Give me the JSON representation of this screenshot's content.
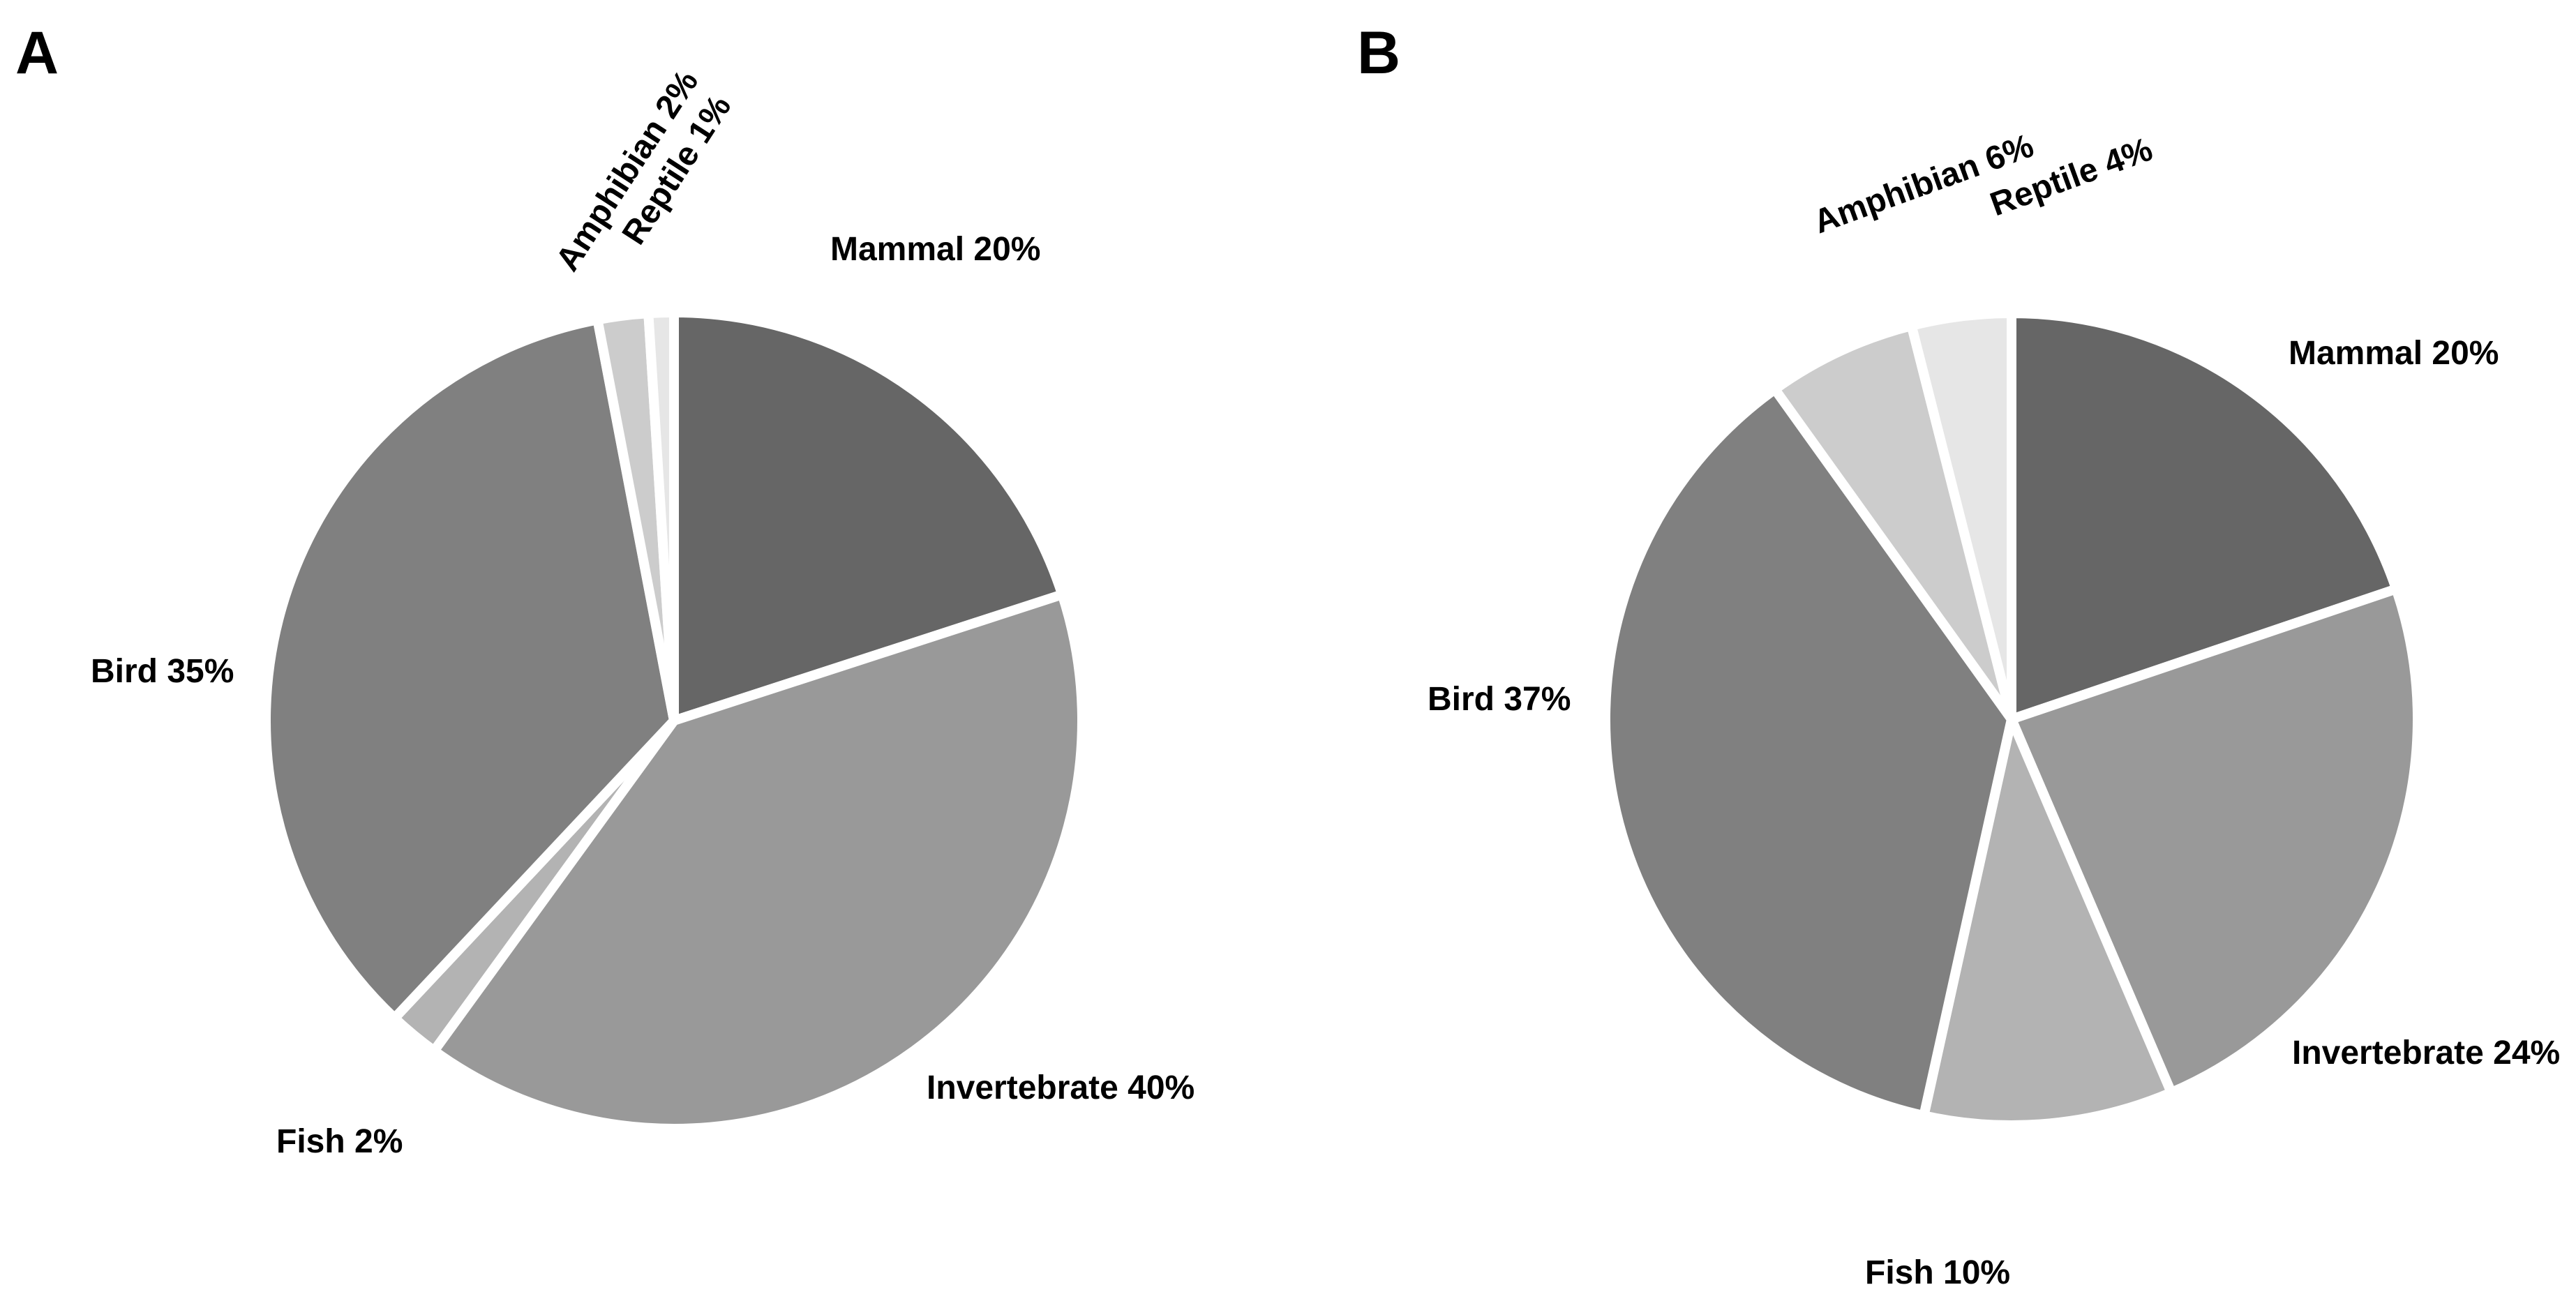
{
  "chart_data": [
    {
      "type": "pie",
      "panel_label": "A",
      "slices": [
        {
          "name": "Mammal",
          "value": 20,
          "label": "Mammal 20%",
          "color": "#666666"
        },
        {
          "name": "Invertebrate",
          "value": 40,
          "label": "Invertebrate 40%",
          "color": "#999999"
        },
        {
          "name": "Fish",
          "value": 2,
          "label": "Fish 2%",
          "color": "#b3b3b3"
        },
        {
          "name": "Bird",
          "value": 35,
          "label": "Bird 35%",
          "color": "#808080"
        },
        {
          "name": "Amphibian",
          "value": 2,
          "label": "Amphibian 2%",
          "color": "#cccccc"
        },
        {
          "name": "Reptile",
          "value": 1,
          "label": "Reptile 1%",
          "color": "#e6e6e6"
        }
      ]
    },
    {
      "type": "pie",
      "panel_label": "B",
      "slices": [
        {
          "name": "Mammal",
          "value": 20,
          "label": "Mammal 20%",
          "color": "#666666"
        },
        {
          "name": "Invertebrate",
          "value": 24,
          "label": "Invertebrate 24%",
          "color": "#999999"
        },
        {
          "name": "Fish",
          "value": 10,
          "label": "Fish 10%",
          "color": "#b3b3b3"
        },
        {
          "name": "Bird",
          "value": 37,
          "label": "Bird 37%",
          "color": "#808080"
        },
        {
          "name": "Amphibian",
          "value": 6,
          "label": "Amphibian 6%",
          "color": "#cccccc"
        },
        {
          "name": "Reptile",
          "value": 4,
          "label": "Reptile 4%",
          "color": "#e6e6e6"
        }
      ]
    }
  ]
}
